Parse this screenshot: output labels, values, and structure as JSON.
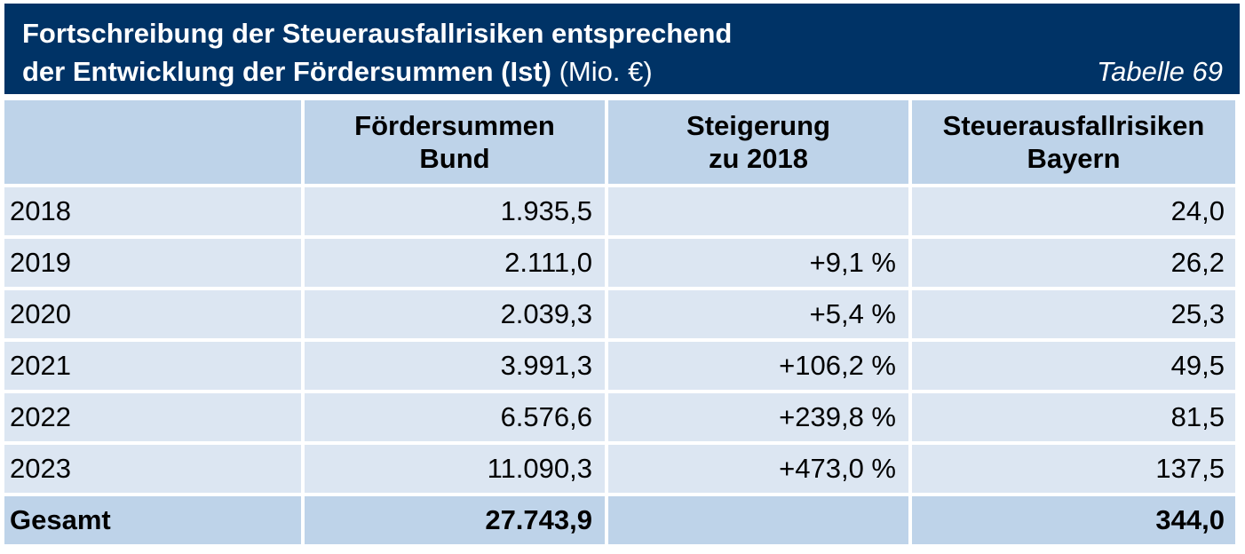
{
  "title": {
    "line1": "Fortschreibung der Steuerausfallrisiken entsprechend",
    "line2_bold": "der Entwicklung der Fördersummen (Ist)",
    "line2_unit": "(Mio. €)",
    "table_number": "Tabelle 69"
  },
  "columns": [
    "",
    [
      "Fördersummen",
      "Bund"
    ],
    [
      "Steigerung",
      "zu 2018"
    ],
    [
      "Steuerausfallrisiken",
      "Bayern"
    ]
  ],
  "rows": [
    {
      "year": "2018",
      "foerdersummen": "1.935,5",
      "steigerung": "",
      "risiken": "24,0"
    },
    {
      "year": "2019",
      "foerdersummen": "2.111,0",
      "steigerung": "+9,1 %",
      "risiken": "26,2"
    },
    {
      "year": "2020",
      "foerdersummen": "2.039,3",
      "steigerung": "+5,4 %",
      "risiken": "25,3"
    },
    {
      "year": "2021",
      "foerdersummen": "3.991,3",
      "steigerung": "+106,2 %",
      "risiken": "49,5"
    },
    {
      "year": "2022",
      "foerdersummen": "6.576,6",
      "steigerung": "+239,8 %",
      "risiken": "81,5"
    },
    {
      "year": "2023",
      "foerdersummen": "11.090,3",
      "steigerung": "+473,0 %",
      "risiken": "137,5"
    }
  ],
  "total": {
    "label": "Gesamt",
    "foerdersummen": "27.743,9",
    "steigerung": "",
    "risiken": "344,0"
  }
}
